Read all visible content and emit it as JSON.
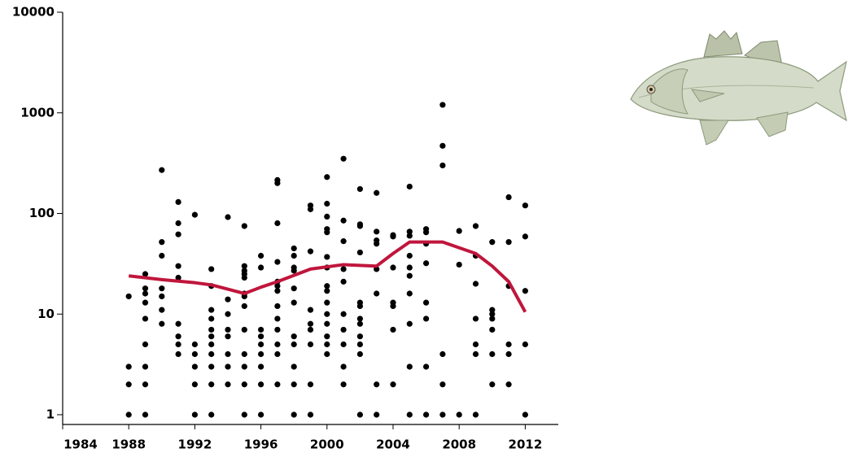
{
  "chart_data": {
    "type": "scatter",
    "log_y": true,
    "xlim": [
      1984,
      2014
    ],
    "xticks": [
      1984,
      1988,
      1992,
      1996,
      2000,
      2004,
      2008,
      2012
    ],
    "ylim": [
      0.8,
      10000
    ],
    "yticks": [
      1,
      10,
      100,
      1000,
      10000
    ],
    "series": [
      {
        "type": "scatter",
        "color": "#000000",
        "x": [
          1988,
          1988,
          1988,
          1988,
          1989,
          1989,
          1989,
          1989,
          1989,
          1989,
          1989,
          1989,
          1989,
          1990,
          1990,
          1990,
          1990,
          1990,
          1990,
          1990,
          1991,
          1991,
          1991,
          1991,
          1991,
          1991,
          1991,
          1991,
          1991,
          1992,
          1992,
          1992,
          1992,
          1992,
          1992,
          1993,
          1993,
          1993,
          1993,
          1993,
          1993,
          1993,
          1993,
          1993,
          1993,
          1993,
          1994,
          1994,
          1994,
          1994,
          1994,
          1994,
          1994,
          1994,
          1995,
          1995,
          1995,
          1995,
          1995,
          1995,
          1995,
          1995,
          1995,
          1995,
          1995,
          1995,
          1995,
          1996,
          1996,
          1996,
          1996,
          1996,
          1996,
          1996,
          1996,
          1996,
          1997,
          1997,
          1997,
          1997,
          1997,
          1997,
          1997,
          1997,
          1997,
          1997,
          1997,
          1997,
          1997,
          1998,
          1998,
          1998,
          1998,
          1998,
          1998,
          1998,
          1998,
          1998,
          1998,
          1998,
          1999,
          1999,
          1999,
          1999,
          1999,
          1999,
          1999,
          1999,
          1999,
          2000,
          2000,
          2000,
          2000,
          2000,
          2000,
          2000,
          2000,
          2000,
          2000,
          2000,
          2000,
          2000,
          2000,
          2000,
          2001,
          2001,
          2001,
          2001,
          2001,
          2001,
          2001,
          2001,
          2001,
          2001,
          2002,
          2002,
          2002,
          2002,
          2002,
          2002,
          2002,
          2002,
          2002,
          2002,
          2002,
          2002,
          2003,
          2003,
          2003,
          2003,
          2003,
          2003,
          2003,
          2003,
          2004,
          2004,
          2004,
          2004,
          2004,
          2004,
          2004,
          2005,
          2005,
          2005,
          2005,
          2005,
          2005,
          2005,
          2005,
          2005,
          2005,
          2006,
          2006,
          2006,
          2006,
          2006,
          2006,
          2006,
          2006,
          2007,
          2007,
          2007,
          2007,
          2007,
          2007,
          2008,
          2008,
          2008,
          2009,
          2009,
          2009,
          2009,
          2009,
          2009,
          2009,
          2010,
          2010,
          2010,
          2010,
          2010,
          2010,
          2010,
          2011,
          2011,
          2011,
          2011,
          2011,
          2011,
          2012,
          2012,
          2012,
          2012,
          2012
        ],
        "values": [
          1,
          2,
          3,
          15,
          1,
          2,
          3,
          5,
          9,
          13,
          16,
          18,
          25,
          8,
          11,
          15,
          18,
          38,
          52,
          270,
          4,
          5,
          6,
          8,
          23,
          30,
          62,
          80,
          130,
          1,
          2,
          3,
          4,
          5,
          97,
          1,
          2,
          3,
          4,
          5,
          6,
          7,
          9,
          11,
          19,
          28,
          2,
          3,
          4,
          6,
          7,
          10,
          14,
          92,
          1,
          2,
          3,
          4,
          7,
          12,
          15,
          16,
          23,
          25,
          27,
          30,
          75,
          1,
          2,
          3,
          4,
          5,
          6,
          7,
          29,
          38,
          2,
          4,
          5,
          7,
          9,
          12,
          17,
          19,
          21,
          33,
          80,
          200,
          215,
          1,
          2,
          3,
          5,
          6,
          13,
          18,
          27,
          29,
          38,
          45,
          1,
          2,
          5,
          7,
          8,
          11,
          42,
          110,
          120,
          4,
          5,
          6,
          8,
          10,
          13,
          17,
          19,
          29,
          37,
          65,
          70,
          93,
          125,
          230,
          2,
          3,
          5,
          7,
          10,
          21,
          28,
          53,
          85,
          350,
          1,
          4,
          5,
          6,
          8,
          9,
          12,
          13,
          41,
          75,
          78,
          175,
          1,
          2,
          16,
          28,
          50,
          54,
          66,
          160,
          2,
          7,
          12,
          13,
          29,
          59,
          61,
          1,
          3,
          8,
          16,
          24,
          29,
          38,
          60,
          66,
          185,
          1,
          3,
          9,
          13,
          32,
          50,
          65,
          70,
          1,
          2,
          4,
          300,
          470,
          1200,
          1,
          31,
          67,
          1,
          4,
          5,
          9,
          20,
          38,
          75,
          2,
          4,
          7,
          9,
          10,
          11,
          52,
          2,
          4,
          5,
          19,
          52,
          145,
          1,
          5,
          17,
          59,
          120
        ]
      },
      {
        "type": "line",
        "color": "#c0163c",
        "x": [
          1988,
          1990,
          1992,
          1993,
          1995,
          1996,
          1997,
          1999,
          2001,
          2003,
          2004,
          2005,
          2007,
          2009,
          2010,
          2011,
          2012
        ],
        "values": [
          24,
          22,
          20.5,
          19.5,
          16,
          18.5,
          21,
          28,
          31,
          30,
          40,
          52,
          52,
          40,
          30,
          21,
          10.5
        ]
      }
    ]
  }
}
